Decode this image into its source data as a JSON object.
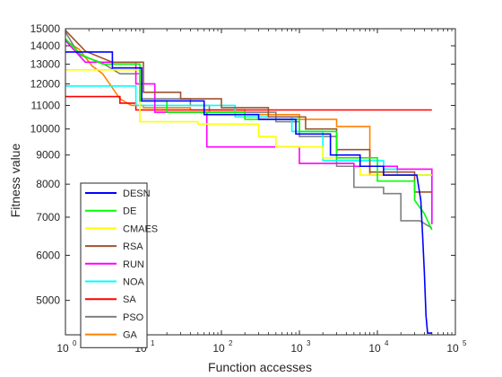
{
  "chart_data": {
    "type": "line",
    "xlabel": "Function accesses",
    "ylabel": "Fitness value",
    "xscale": "log",
    "yscale": "log",
    "xlim": [
      1,
      100000
    ],
    "ylim": [
      4350,
      15000
    ],
    "xticks": [
      {
        "value": 1,
        "label": "10",
        "exp": "0"
      },
      {
        "value": 10,
        "label": "10",
        "exp": "1"
      },
      {
        "value": 100,
        "label": "10",
        "exp": "2"
      },
      {
        "value": 1000,
        "label": "10",
        "exp": "3"
      },
      {
        "value": 10000,
        "label": "10",
        "exp": "4"
      },
      {
        "value": 100000,
        "label": "10",
        "exp": "5"
      }
    ],
    "yticks": [
      5000,
      6000,
      7000,
      8000,
      9000,
      10000,
      11000,
      12000,
      13000,
      14000,
      15000
    ],
    "grid": false,
    "legend_position": "bottom-left",
    "series": [
      {
        "name": "DESN",
        "color": "#0000ff",
        "points": [
          [
            1,
            13650
          ],
          [
            4,
            13650
          ],
          [
            4,
            12800
          ],
          [
            9.5,
            12800
          ],
          [
            9.5,
            11200
          ],
          [
            60,
            11200
          ],
          [
            60,
            10600
          ],
          [
            300,
            10600
          ],
          [
            300,
            10400
          ],
          [
            900,
            10400
          ],
          [
            900,
            9800
          ],
          [
            2500,
            9800
          ],
          [
            2500,
            9000
          ],
          [
            6000,
            9000
          ],
          [
            6000,
            8600
          ],
          [
            12000,
            8600
          ],
          [
            12000,
            8300
          ],
          [
            32000,
            8300
          ],
          [
            36000,
            7500
          ],
          [
            38000,
            6500
          ],
          [
            40000,
            5600
          ],
          [
            42000,
            4700
          ],
          [
            44000,
            4380
          ],
          [
            50000,
            4380
          ]
        ]
      },
      {
        "name": "DE",
        "color": "#00ff00",
        "points": [
          [
            1,
            14400
          ],
          [
            1.6,
            13500
          ],
          [
            3,
            13000
          ],
          [
            9,
            13000
          ],
          [
            9,
            11200
          ],
          [
            20,
            11200
          ],
          [
            20,
            10700
          ],
          [
            200,
            10700
          ],
          [
            200,
            10400
          ],
          [
            1000,
            10400
          ],
          [
            1000,
            9900
          ],
          [
            3000,
            9900
          ],
          [
            3000,
            8900
          ],
          [
            10000,
            8900
          ],
          [
            10000,
            8100
          ],
          [
            30000,
            8100
          ],
          [
            30000,
            7500
          ],
          [
            40000,
            7100
          ],
          [
            50000,
            6650
          ]
        ]
      },
      {
        "name": "CMAES",
        "color": "#ffff00",
        "points": [
          [
            1,
            12700
          ],
          [
            9,
            12700
          ],
          [
            9,
            10300
          ],
          [
            50,
            10300
          ],
          [
            50,
            10200
          ],
          [
            300,
            10200
          ],
          [
            300,
            9700
          ],
          [
            500,
            9700
          ],
          [
            500,
            9300
          ],
          [
            2000,
            9300
          ],
          [
            2000,
            8900
          ],
          [
            6000,
            8900
          ],
          [
            6000,
            8300
          ],
          [
            50000,
            8300
          ]
        ]
      },
      {
        "name": "RSA",
        "color": "#a0522d",
        "points": [
          [
            1,
            14900
          ],
          [
            1.8,
            13700
          ],
          [
            4,
            13100
          ],
          [
            10,
            13100
          ],
          [
            10,
            11600
          ],
          [
            30,
            11600
          ],
          [
            30,
            11300
          ],
          [
            100,
            11300
          ],
          [
            100,
            10900
          ],
          [
            400,
            10900
          ],
          [
            400,
            10500
          ],
          [
            1200,
            10500
          ],
          [
            1200,
            10000
          ],
          [
            3000,
            10000
          ],
          [
            3000,
            9200
          ],
          [
            8000,
            9200
          ],
          [
            8000,
            8400
          ],
          [
            30000,
            8400
          ],
          [
            30000,
            7750
          ],
          [
            50000,
            7750
          ]
        ]
      },
      {
        "name": "RUN",
        "color": "#ff00ff",
        "points": [
          [
            1,
            14300
          ],
          [
            1.8,
            13100
          ],
          [
            8,
            13100
          ],
          [
            8,
            12000
          ],
          [
            14,
            12000
          ],
          [
            14,
            10700
          ],
          [
            65,
            10700
          ],
          [
            65,
            9300
          ],
          [
            1000,
            9300
          ],
          [
            1000,
            8700
          ],
          [
            5000,
            8700
          ],
          [
            5000,
            8600
          ],
          [
            18000,
            8600
          ],
          [
            18000,
            8500
          ],
          [
            50000,
            8500
          ],
          [
            50000,
            6800
          ]
        ]
      },
      {
        "name": "NOA",
        "color": "#00ffff",
        "points": [
          [
            1,
            11900
          ],
          [
            8,
            11900
          ],
          [
            8,
            11000
          ],
          [
            150,
            11000
          ],
          [
            150,
            10500
          ],
          [
            800,
            10500
          ],
          [
            800,
            9900
          ],
          [
            2000,
            9900
          ],
          [
            2000,
            8800
          ],
          [
            12000,
            8800
          ],
          [
            12000,
            8500
          ],
          [
            18000,
            8500
          ],
          [
            18000,
            8300
          ],
          [
            50000,
            8300
          ],
          [
            50000,
            6900
          ]
        ]
      },
      {
        "name": "SA",
        "color": "#ff0000",
        "points": [
          [
            1,
            11400
          ],
          [
            5,
            11400
          ],
          [
            5,
            11100
          ],
          [
            8,
            11100
          ],
          [
            8,
            10800
          ],
          [
            50000,
            10800
          ]
        ]
      },
      {
        "name": "PSO",
        "color": "#808080",
        "points": [
          [
            1,
            14800
          ],
          [
            1.5,
            13500
          ],
          [
            3,
            13050
          ],
          [
            5,
            12500
          ],
          [
            9,
            12500
          ],
          [
            9,
            11300
          ],
          [
            40,
            11300
          ],
          [
            40,
            11000
          ],
          [
            70,
            11000
          ],
          [
            70,
            10700
          ],
          [
            500,
            10700
          ],
          [
            500,
            10300
          ],
          [
            1000,
            10300
          ],
          [
            1000,
            9700
          ],
          [
            3000,
            9700
          ],
          [
            3000,
            8600
          ],
          [
            5000,
            8600
          ],
          [
            5000,
            7900
          ],
          [
            12000,
            7900
          ],
          [
            12000,
            7700
          ],
          [
            20000,
            7700
          ],
          [
            20000,
            6900
          ],
          [
            35000,
            6900
          ],
          [
            50000,
            6700
          ]
        ]
      },
      {
        "name": "GA",
        "color": "#ff8000",
        "points": [
          [
            1,
            14300
          ],
          [
            1.5,
            13800
          ],
          [
            2.2,
            12900
          ],
          [
            3,
            12500
          ],
          [
            5,
            11300
          ],
          [
            7,
            11000
          ],
          [
            10,
            11000
          ],
          [
            10,
            10900
          ],
          [
            40,
            10900
          ],
          [
            40,
            10800
          ],
          [
            200,
            10800
          ],
          [
            200,
            10600
          ],
          [
            1000,
            10600
          ],
          [
            1000,
            10400
          ],
          [
            3000,
            10400
          ],
          [
            3000,
            10100
          ],
          [
            8000,
            10100
          ],
          [
            8000,
            8300
          ],
          [
            50000,
            8300
          ]
        ]
      }
    ]
  }
}
